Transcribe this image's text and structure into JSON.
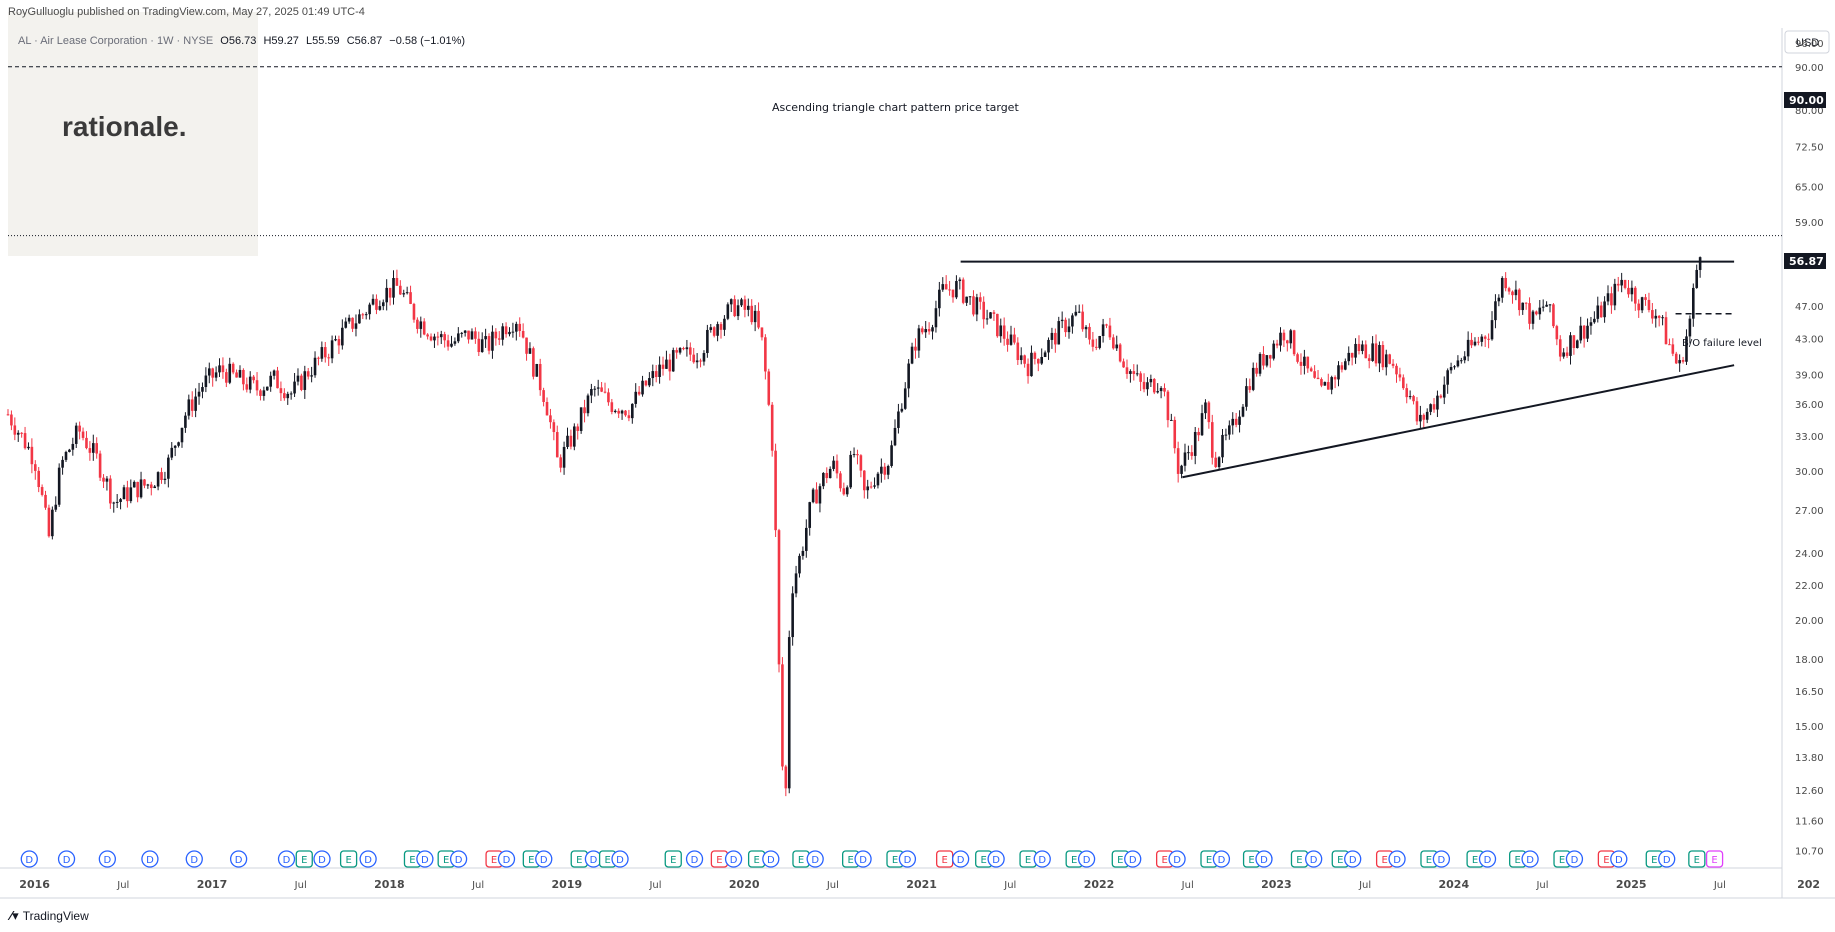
{
  "header": {
    "published_line": "RoyGulluoglu published on TradingView.com, May 27, 2025 01:49 UTC-4"
  },
  "legend": {
    "symbol_line": "AL · Air Lease Corporation · 1W · NYSE",
    "open": "O56.73",
    "high": "H59.27",
    "low": "L55.59",
    "close": "C56.87",
    "change": "−0.58 (−1.01%)"
  },
  "watermark": {
    "text": "rationale."
  },
  "currency_button": "USD",
  "colors": {
    "up": "#131722",
    "down": "#f23645",
    "accent": "#131722",
    "watermark_bg": "#f3f2ee"
  },
  "annotations": {
    "target_label": "Ascending triangle chart pattern price target",
    "bo_label": "B/O failure level",
    "target_price_tag": "90.00",
    "last_price_tag": "56.87"
  },
  "footer": {
    "brand": "TradingView",
    "icon": "tradingview-logo-icon"
  },
  "chart_data": {
    "type": "candlestick",
    "symbol": "AL",
    "interval": "1W",
    "y_scale": "log",
    "y_range": [
      10.2,
      100
    ],
    "y_ticks": [
      "96.00",
      "90.00",
      "80.00",
      "72.50",
      "65.00",
      "59.00",
      "53.00",
      "47.00",
      "43.00",
      "39.00",
      "36.00",
      "33.00",
      "30.00",
      "27.00",
      "24.00",
      "22.00",
      "20.00",
      "18.00",
      "16.50",
      "15.00",
      "13.80",
      "12.60",
      "11.60",
      "10.70"
    ],
    "x_range": [
      2015.85,
      2025.85
    ],
    "x_ticks": [
      {
        "label": "2016",
        "t": 2016.0
      },
      {
        "label": "Jul",
        "t": 2016.5
      },
      {
        "label": "2017",
        "t": 2017.0
      },
      {
        "label": "Jul",
        "t": 2017.5
      },
      {
        "label": "2018",
        "t": 2018.0
      },
      {
        "label": "Jul",
        "t": 2018.5
      },
      {
        "label": "2019",
        "t": 2019.0
      },
      {
        "label": "Jul",
        "t": 2019.5
      },
      {
        "label": "2020",
        "t": 2020.0
      },
      {
        "label": "Jul",
        "t": 2020.5
      },
      {
        "label": "2021",
        "t": 2021.0
      },
      {
        "label": "Jul",
        "t": 2021.5
      },
      {
        "label": "2022",
        "t": 2022.0
      },
      {
        "label": "Jul",
        "t": 2022.5
      },
      {
        "label": "2023",
        "t": 2023.0
      },
      {
        "label": "Jul",
        "t": 2023.5
      },
      {
        "label": "2024",
        "t": 2024.0
      },
      {
        "label": "Jul",
        "t": 2024.5
      },
      {
        "label": "2025",
        "t": 2025.0
      },
      {
        "label": "Jul",
        "t": 2025.5
      },
      {
        "label": "202",
        "t": 2026.0
      }
    ],
    "price_path": [
      [
        2015.85,
        35.0
      ],
      [
        2016.0,
        31.0
      ],
      [
        2016.08,
        25.0
      ],
      [
        2016.15,
        30.5
      ],
      [
        2016.25,
        33.5
      ],
      [
        2016.35,
        31.0
      ],
      [
        2016.45,
        27.5
      ],
      [
        2016.55,
        28.5
      ],
      [
        2016.65,
        29.0
      ],
      [
        2016.75,
        30.5
      ],
      [
        2016.85,
        35.0
      ],
      [
        2016.95,
        38.0
      ],
      [
        2017.05,
        39.5
      ],
      [
        2017.15,
        38.5
      ],
      [
        2017.25,
        37.5
      ],
      [
        2017.35,
        38.5
      ],
      [
        2017.45,
        37.0
      ],
      [
        2017.55,
        39.5
      ],
      [
        2017.65,
        41.5
      ],
      [
        2017.75,
        44.0
      ],
      [
        2017.85,
        46.0
      ],
      [
        2017.95,
        48.5
      ],
      [
        2018.05,
        49.5
      ],
      [
        2018.15,
        45.5
      ],
      [
        2018.25,
        43.5
      ],
      [
        2018.35,
        42.5
      ],
      [
        2018.45,
        43.5
      ],
      [
        2018.55,
        42.0
      ],
      [
        2018.65,
        44.5
      ],
      [
        2018.72,
        45.5
      ],
      [
        2018.8,
        40.5
      ],
      [
        2018.88,
        36.5
      ],
      [
        2018.95,
        30.5
      ],
      [
        2019.05,
        33.5
      ],
      [
        2019.15,
        37.5
      ],
      [
        2019.25,
        36.0
      ],
      [
        2019.35,
        35.5
      ],
      [
        2019.45,
        38.0
      ],
      [
        2019.55,
        40.0
      ],
      [
        2019.65,
        41.0
      ],
      [
        2019.75,
        41.5
      ],
      [
        2019.85,
        45.0
      ],
      [
        2019.95,
        47.0
      ],
      [
        2020.05,
        46.0
      ],
      [
        2020.1,
        42.5
      ],
      [
        2020.16,
        32.0
      ],
      [
        2020.2,
        16.0
      ],
      [
        2020.23,
        11.0
      ],
      [
        2020.26,
        21.5
      ],
      [
        2020.32,
        24.0
      ],
      [
        2020.38,
        27.5
      ],
      [
        2020.45,
        29.5
      ],
      [
        2020.5,
        30.5
      ],
      [
        2020.56,
        28.5
      ],
      [
        2020.62,
        31.5
      ],
      [
        2020.68,
        28.0
      ],
      [
        2020.75,
        30.0
      ],
      [
        2020.82,
        31.0
      ],
      [
        2020.9,
        37.5
      ],
      [
        2020.97,
        43.0
      ],
      [
        2021.05,
        45.0
      ],
      [
        2021.12,
        49.0
      ],
      [
        2021.2,
        49.5
      ],
      [
        2021.3,
        47.0
      ],
      [
        2021.4,
        45.0
      ],
      [
        2021.5,
        42.5
      ],
      [
        2021.6,
        40.0
      ],
      [
        2021.7,
        42.0
      ],
      [
        2021.8,
        44.5
      ],
      [
        2021.88,
        46.0
      ],
      [
        2021.95,
        42.0
      ],
      [
        2022.05,
        44.5
      ],
      [
        2022.15,
        40.0
      ],
      [
        2022.25,
        37.5
      ],
      [
        2022.35,
        38.5
      ],
      [
        2022.45,
        30.0
      ],
      [
        2022.55,
        33.0
      ],
      [
        2022.6,
        35.5
      ],
      [
        2022.65,
        31.0
      ],
      [
        2022.75,
        33.5
      ],
      [
        2022.85,
        38.5
      ],
      [
        2022.95,
        41.5
      ],
      [
        2023.05,
        44.0
      ],
      [
        2023.15,
        40.0
      ],
      [
        2023.25,
        37.0
      ],
      [
        2023.35,
        39.5
      ],
      [
        2023.45,
        42.0
      ],
      [
        2023.55,
        41.5
      ],
      [
        2023.65,
        40.5
      ],
      [
        2023.75,
        37.0
      ],
      [
        2023.8,
        34.0
      ],
      [
        2023.9,
        36.5
      ],
      [
        2024.0,
        40.0
      ],
      [
        2024.1,
        42.0
      ],
      [
        2024.2,
        44.0
      ],
      [
        2024.28,
        51.0
      ],
      [
        2024.35,
        48.5
      ],
      [
        2024.45,
        45.0
      ],
      [
        2024.52,
        47.5
      ],
      [
        2024.6,
        41.5
      ],
      [
        2024.7,
        43.5
      ],
      [
        2024.8,
        45.5
      ],
      [
        2024.9,
        48.5
      ],
      [
        2024.95,
        50.5
      ],
      [
        2025.05,
        47.5
      ],
      [
        2025.15,
        46.0
      ],
      [
        2025.2,
        43.0
      ],
      [
        2025.27,
        39.5
      ],
      [
        2025.33,
        45.0
      ],
      [
        2025.37,
        52.0
      ],
      [
        2025.4,
        56.87
      ]
    ],
    "last_close": 56.87,
    "trendlines": [
      {
        "kind": "resistance",
        "from": [
          2021.22,
          53.0
        ],
        "to": [
          2025.58,
          53.0
        ]
      },
      {
        "kind": "support",
        "from": [
          2022.47,
          29.5
        ],
        "to": [
          2025.58,
          40.0
        ]
      },
      {
        "kind": "target",
        "from": [
          2015.85,
          90.0
        ],
        "to": [
          2025.85,
          90.0
        ]
      },
      {
        "kind": "bo_failure",
        "from": [
          2025.25,
          46.0
        ],
        "to": [
          2025.58,
          46.0
        ]
      }
    ],
    "event_markers": [
      {
        "t": 2015.97,
        "type": "D"
      },
      {
        "t": 2016.18,
        "type": "D"
      },
      {
        "t": 2016.41,
        "type": "D"
      },
      {
        "t": 2016.65,
        "type": "D"
      },
      {
        "t": 2016.9,
        "type": "D"
      },
      {
        "t": 2017.15,
        "type": "D"
      },
      {
        "t": 2017.42,
        "type": "D"
      },
      {
        "t": 2017.52,
        "type": "E"
      },
      {
        "t": 2017.62,
        "type": "D"
      },
      {
        "t": 2017.77,
        "type": "E"
      },
      {
        "t": 2017.88,
        "type": "D"
      },
      {
        "t": 2018.13,
        "type": "E"
      },
      {
        "t": 2018.2,
        "type": "D"
      },
      {
        "t": 2018.32,
        "type": "E"
      },
      {
        "t": 2018.39,
        "type": "D"
      },
      {
        "t": 2018.59,
        "type": "E"
      },
      {
        "t": 2018.66,
        "type": "D"
      },
      {
        "t": 2018.8,
        "type": "E"
      },
      {
        "t": 2018.87,
        "type": "D"
      },
      {
        "t": 2019.07,
        "type": "E"
      },
      {
        "t": 2019.15,
        "type": "D"
      },
      {
        "t": 2019.23,
        "type": "E"
      },
      {
        "t": 2019.3,
        "type": "D"
      },
      {
        "t": 2019.6,
        "type": "E"
      },
      {
        "t": 2019.72,
        "type": "D"
      },
      {
        "t": 2019.86,
        "type": "E"
      },
      {
        "t": 2019.94,
        "type": "D"
      },
      {
        "t": 2020.07,
        "type": "E"
      },
      {
        "t": 2020.15,
        "type": "D"
      },
      {
        "t": 2020.32,
        "type": "E"
      },
      {
        "t": 2020.4,
        "type": "D"
      },
      {
        "t": 2020.6,
        "type": "E"
      },
      {
        "t": 2020.67,
        "type": "D"
      },
      {
        "t": 2020.85,
        "type": "E"
      },
      {
        "t": 2020.92,
        "type": "D"
      },
      {
        "t": 2021.13,
        "type": "E"
      },
      {
        "t": 2021.22,
        "type": "D"
      },
      {
        "t": 2021.35,
        "type": "E"
      },
      {
        "t": 2021.42,
        "type": "D"
      },
      {
        "t": 2021.6,
        "type": "E"
      },
      {
        "t": 2021.68,
        "type": "D"
      },
      {
        "t": 2021.86,
        "type": "E"
      },
      {
        "t": 2021.93,
        "type": "D"
      },
      {
        "t": 2022.12,
        "type": "E"
      },
      {
        "t": 2022.19,
        "type": "D"
      },
      {
        "t": 2022.37,
        "type": "E"
      },
      {
        "t": 2022.44,
        "type": "D"
      },
      {
        "t": 2022.62,
        "type": "E"
      },
      {
        "t": 2022.69,
        "type": "D"
      },
      {
        "t": 2022.86,
        "type": "E"
      },
      {
        "t": 2022.93,
        "type": "D"
      },
      {
        "t": 2023.13,
        "type": "E"
      },
      {
        "t": 2023.21,
        "type": "D"
      },
      {
        "t": 2023.36,
        "type": "E"
      },
      {
        "t": 2023.43,
        "type": "D"
      },
      {
        "t": 2023.61,
        "type": "E"
      },
      {
        "t": 2023.68,
        "type": "D"
      },
      {
        "t": 2023.86,
        "type": "E"
      },
      {
        "t": 2023.93,
        "type": "D"
      },
      {
        "t": 2024.12,
        "type": "E"
      },
      {
        "t": 2024.19,
        "type": "D"
      },
      {
        "t": 2024.36,
        "type": "E"
      },
      {
        "t": 2024.43,
        "type": "D"
      },
      {
        "t": 2024.61,
        "type": "E"
      },
      {
        "t": 2024.68,
        "type": "D"
      },
      {
        "t": 2024.86,
        "type": "E"
      },
      {
        "t": 2024.93,
        "type": "D"
      },
      {
        "t": 2025.13,
        "type": "E"
      },
      {
        "t": 2025.2,
        "type": "D"
      },
      {
        "t": 2025.37,
        "type": "E"
      },
      {
        "t": 2025.47,
        "type": "E"
      }
    ]
  }
}
